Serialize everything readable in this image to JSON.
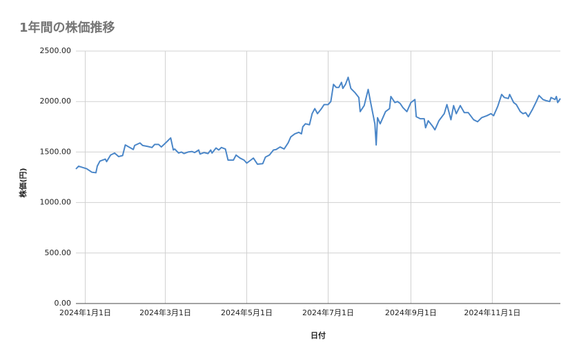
{
  "chart_data": {
    "type": "line",
    "title": "1年間の株価推移",
    "x_label": "日付",
    "y_label": "株価(円)",
    "x": [
      "2023-12-25",
      "2023-12-27",
      "2024-01-02",
      "2024-01-06",
      "2024-01-09",
      "2024-01-10",
      "2024-01-12",
      "2024-01-16",
      "2024-01-17",
      "2024-01-20",
      "2024-01-23",
      "2024-01-26",
      "2024-01-29",
      "2024-01-31",
      "2024-02-04",
      "2024-02-06",
      "2024-02-07",
      "2024-02-11",
      "2024-02-13",
      "2024-02-17",
      "2024-02-20",
      "2024-02-22",
      "2024-02-25",
      "2024-02-27",
      "2024-03-02",
      "2024-03-05",
      "2024-03-07",
      "2024-03-08",
      "2024-03-11",
      "2024-03-13",
      "2024-03-15",
      "2024-03-18",
      "2024-03-21",
      "2024-03-23",
      "2024-03-26",
      "2024-03-27",
      "2024-03-30",
      "2024-04-02",
      "2024-04-04",
      "2024-04-05",
      "2024-04-08",
      "2024-04-10",
      "2024-04-12",
      "2024-04-15",
      "2024-04-17",
      "2024-04-21",
      "2024-04-23",
      "2024-04-26",
      "2024-04-29",
      "2024-05-01",
      "2024-05-04",
      "2024-05-06",
      "2024-05-09",
      "2024-05-13",
      "2024-05-15",
      "2024-05-18",
      "2024-05-21",
      "2024-05-23",
      "2024-05-26",
      "2024-05-29",
      "2024-06-01",
      "2024-06-03",
      "2024-06-06",
      "2024-06-09",
      "2024-06-11",
      "2024-06-12",
      "2024-06-14",
      "2024-06-17",
      "2024-06-19",
      "2024-06-21",
      "2024-06-23",
      "2024-06-26",
      "2024-06-28",
      "2024-07-01",
      "2024-07-03",
      "2024-07-05",
      "2024-07-07",
      "2024-07-09",
      "2024-07-11",
      "2024-07-12",
      "2024-07-14",
      "2024-07-16",
      "2024-07-18",
      "2024-07-21",
      "2024-07-24",
      "2024-07-25",
      "2024-07-28",
      "2024-07-31",
      "2024-08-02",
      "2024-08-05",
      "2024-08-06",
      "2024-08-07",
      "2024-08-09",
      "2024-08-13",
      "2024-08-16",
      "2024-08-17",
      "2024-08-20",
      "2024-08-22",
      "2024-08-24",
      "2024-08-26",
      "2024-08-29",
      "2024-09-01",
      "2024-09-04",
      "2024-09-05",
      "2024-09-08",
      "2024-09-11",
      "2024-09-12",
      "2024-09-14",
      "2024-09-17",
      "2024-09-19",
      "2024-09-22",
      "2024-09-26",
      "2024-09-28",
      "2024-10-01",
      "2024-10-03",
      "2024-10-05",
      "2024-10-08",
      "2024-10-11",
      "2024-10-14",
      "2024-10-18",
      "2024-10-21",
      "2024-10-24",
      "2024-10-28",
      "2024-10-31",
      "2024-11-02",
      "2024-11-05",
      "2024-11-08",
      "2024-11-10",
      "2024-11-13",
      "2024-11-14",
      "2024-11-17",
      "2024-11-19",
      "2024-11-22",
      "2024-11-24",
      "2024-11-26",
      "2024-11-28",
      "2024-12-01",
      "2024-12-04",
      "2024-12-06",
      "2024-12-09",
      "2024-12-11",
      "2024-12-14",
      "2024-12-15",
      "2024-12-18",
      "2024-12-19",
      "2024-12-20",
      "2024-12-22"
    ],
    "series": [
      {
        "name": "株価",
        "color": "#4a86c8",
        "values": [
          1332,
          1360,
          1335,
          1300,
          1295,
          1360,
          1410,
          1430,
          1405,
          1470,
          1490,
          1455,
          1465,
          1570,
          1540,
          1525,
          1565,
          1590,
          1565,
          1555,
          1545,
          1575,
          1575,
          1550,
          1600,
          1640,
          1520,
          1530,
          1490,
          1500,
          1485,
          1500,
          1505,
          1495,
          1520,
          1480,
          1495,
          1485,
          1520,
          1490,
          1540,
          1520,
          1545,
          1530,
          1420,
          1420,
          1470,
          1440,
          1420,
          1390,
          1420,
          1440,
          1380,
          1385,
          1450,
          1470,
          1520,
          1525,
          1550,
          1530,
          1590,
          1650,
          1680,
          1695,
          1680,
          1750,
          1780,
          1770,
          1880,
          1930,
          1880,
          1930,
          1970,
          1970,
          2000,
          2170,
          2140,
          2140,
          2190,
          2130,
          2170,
          2240,
          2130,
          2090,
          2040,
          1900,
          1960,
          2120,
          1980,
          1780,
          1570,
          1840,
          1780,
          1900,
          1930,
          2050,
          1990,
          2000,
          1980,
          1940,
          1900,
          1990,
          2020,
          1850,
          1830,
          1830,
          1740,
          1810,
          1760,
          1720,
          1810,
          1880,
          1970,
          1820,
          1960,
          1880,
          1960,
          1890,
          1890,
          1820,
          1800,
          1840,
          1860,
          1880,
          1860,
          1950,
          2070,
          2040,
          2030,
          2070,
          1990,
          1970,
          1900,
          1880,
          1890,
          1850,
          1920,
          2000,
          2060,
          2020,
          2010,
          2000,
          2040,
          2020,
          2050,
          1990,
          2030
        ]
      }
    ],
    "xlim": [
      "2023-12-25",
      "2024-12-22"
    ],
    "xticks": [
      {
        "value": "2024-01-01",
        "label": "2024年1月1日"
      },
      {
        "value": "2024-03-01",
        "label": "2024年3月1日"
      },
      {
        "value": "2024-05-01",
        "label": "2024年5月1日"
      },
      {
        "value": "2024-07-01",
        "label": "2024年7月1日"
      },
      {
        "value": "2024-09-01",
        "label": "2024年9月1日"
      },
      {
        "value": "2024-11-01",
        "label": "2024年11月1日"
      }
    ],
    "ylim": [
      0,
      2500
    ],
    "yticks": [
      {
        "value": 0,
        "label": "0.00"
      },
      {
        "value": 500,
        "label": "500.00"
      },
      {
        "value": 1000,
        "label": "1000.00"
      },
      {
        "value": 1500,
        "label": "1500.00"
      },
      {
        "value": 2000,
        "label": "2000.00"
      },
      {
        "value": 2500,
        "label": "2500.00"
      }
    ],
    "grid": true
  }
}
